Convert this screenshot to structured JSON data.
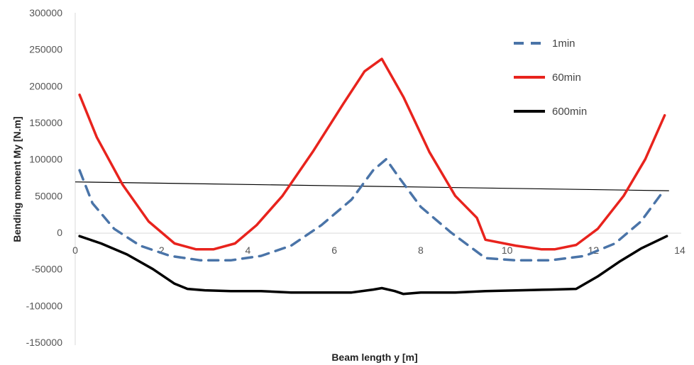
{
  "chart_data": {
    "type": "line",
    "title": "",
    "xlabel": "Beam length y [m]",
    "ylabel": "Bending moment My [N.m]",
    "xlim": [
      0,
      14
    ],
    "ylim": [
      -150000,
      300000
    ],
    "xticks": [
      "0",
      "2",
      "4",
      "6",
      "8",
      "10",
      "12",
      "14"
    ],
    "yticks": [
      "300000",
      "250000",
      "200000",
      "150000",
      "100000",
      "50000",
      "0",
      "-50000",
      "-100000",
      "-150000"
    ],
    "grid": false,
    "legend_position": "top-right",
    "series": [
      {
        "name": "1min",
        "color": "#4a74a8",
        "dash": true,
        "x": [
          0.1,
          0.4,
          0.9,
          1.5,
          2.2,
          2.9,
          3.6,
          4.3,
          5.0,
          5.7,
          6.4,
          6.9,
          7.2,
          7.5,
          8.0,
          8.7,
          9.5,
          10.2,
          11.0,
          11.8,
          12.5,
          13.1,
          13.6
        ],
        "y": [
          85000,
          40000,
          5000,
          -18000,
          -32000,
          -38000,
          -38000,
          -32000,
          -18000,
          10000,
          45000,
          85000,
          100000,
          75000,
          35000,
          0,
          -35000,
          -38000,
          -38000,
          -32000,
          -15000,
          15000,
          55000
        ]
      },
      {
        "name": "60min",
        "color": "#e8231d",
        "dash": false,
        "x": [
          0.1,
          0.5,
          1.1,
          1.7,
          2.3,
          2.8,
          3.2,
          3.7,
          4.2,
          4.8,
          5.5,
          6.2,
          6.7,
          7.1,
          7.6,
          8.2,
          8.8,
          9.3,
          9.5,
          10.2,
          10.8,
          11.1,
          11.6,
          12.1,
          12.7,
          13.2,
          13.65
        ],
        "y": [
          188000,
          130000,
          65000,
          15000,
          -15000,
          -23000,
          -23000,
          -15000,
          10000,
          50000,
          110000,
          175000,
          220000,
          237000,
          185000,
          110000,
          50000,
          20000,
          -10000,
          -18000,
          -23000,
          -23000,
          -17000,
          5000,
          50000,
          100000,
          160000
        ]
      },
      {
        "name": "600min",
        "color": "#000000",
        "dash": false,
        "x": [
          0.1,
          0.6,
          1.2,
          1.8,
          2.3,
          2.6,
          3.0,
          3.6,
          4.3,
          5.0,
          5.7,
          6.4,
          6.9,
          7.1,
          7.4,
          7.6,
          8.0,
          8.8,
          9.5,
          10.3,
          11.0,
          11.6,
          12.1,
          12.6,
          13.1,
          13.7
        ],
        "y": [
          -5000,
          -15000,
          -30000,
          -50000,
          -70000,
          -77000,
          -79000,
          -80000,
          -80000,
          -82000,
          -82000,
          -82000,
          -78000,
          -76000,
          -80000,
          -84000,
          -82000,
          -82000,
          -80000,
          -79000,
          -78000,
          -77000,
          -60000,
          -40000,
          -22000,
          -5000
        ]
      }
    ],
    "annotations": [
      {
        "type": "reference-line",
        "color": "#000000",
        "x": [
          0.0,
          13.75
        ],
        "y": [
          69000,
          57000
        ]
      }
    ]
  }
}
